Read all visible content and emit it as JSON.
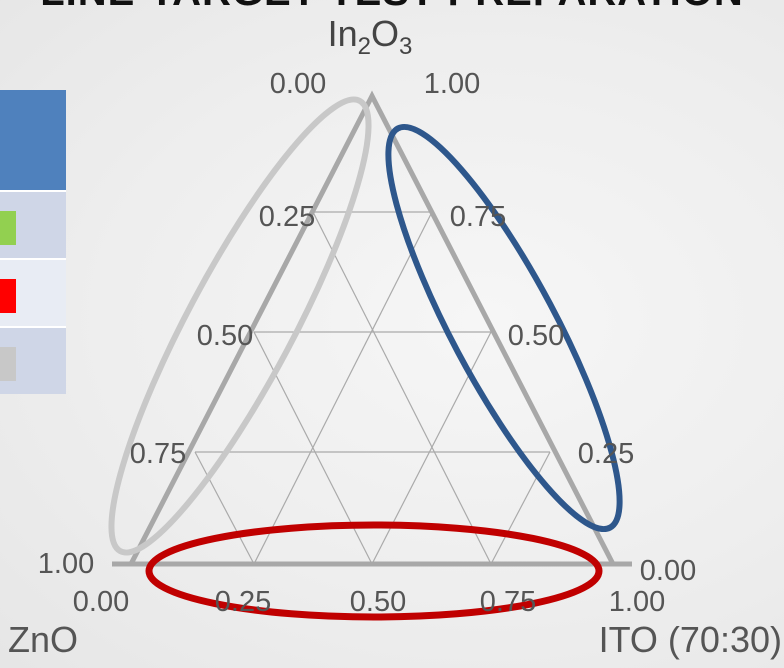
{
  "banner": "LINE-TARGET TEST PREPARATION",
  "apex_labels": {
    "top": "In2O3",
    "left": "ZnO",
    "right": "ITO (70:30)"
  },
  "ticks": {
    "top_left": "0.00",
    "top_right": "1.00",
    "left_side": [
      "0.25",
      "0.50",
      "0.75",
      "1.00"
    ],
    "right_side": [
      "0.75",
      "0.50",
      "0.25",
      "0.00"
    ],
    "bottom": [
      "0.00",
      "0.25",
      "0.50",
      "0.75",
      "1.00"
    ]
  },
  "legend": {
    "swatches": [
      "#92d050",
      "#ff0000",
      "#c8c8c8"
    ]
  },
  "highlights": {
    "left_color": "#c8c8c8",
    "right_color": "#2e578c",
    "bottom_color": "#c00000"
  }
}
